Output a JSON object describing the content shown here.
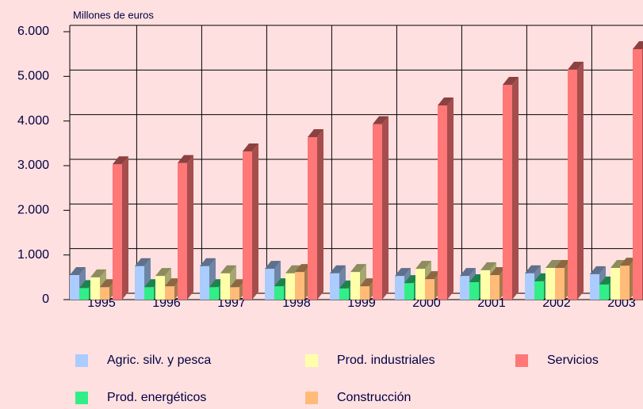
{
  "chart_data": {
    "type": "bar3d",
    "y_axis_label": "Millones de euros",
    "categories": [
      "1995",
      "1996",
      "1997",
      "1998",
      "1999",
      "2000",
      "2001",
      "2002",
      "2003"
    ],
    "series": [
      {
        "name": "Agric. silv. y pesca",
        "color": "#aaccff",
        "values": [
          550,
          750,
          750,
          690,
          590,
          530,
          530,
          590,
          570
        ]
      },
      {
        "name": "Prod. energéticos",
        "color": "#33ee88",
        "values": [
          260,
          280,
          280,
          300,
          250,
          370,
          390,
          410,
          340
        ]
      },
      {
        "name": "Prod. industriales",
        "color": "#ffffaa",
        "values": [
          500,
          530,
          590,
          590,
          620,
          690,
          660,
          710,
          710
        ]
      },
      {
        "name": "Construcción",
        "color": "#ffbb77",
        "values": [
          280,
          300,
          280,
          620,
          300,
          460,
          550,
          710,
          760
        ]
      },
      {
        "name": "Servicios",
        "color": "#ff7777",
        "values": [
          3030,
          3060,
          3320,
          3640,
          3930,
          4350,
          4810,
          5150,
          5610
        ]
      }
    ],
    "ylim": [
      0,
      6000
    ],
    "yticks": [
      0,
      {
        "value": 1000,
        "label": "1.000"
      },
      {
        "value": 2000,
        "label": "2.000"
      },
      {
        "value": 3000,
        "label": "3.000"
      },
      {
        "value": 4000,
        "label": "4.000"
      },
      {
        "value": 5000,
        "label": "5.000"
      },
      {
        "value": 6000,
        "label": "6.000"
      }
    ],
    "grid": true
  }
}
